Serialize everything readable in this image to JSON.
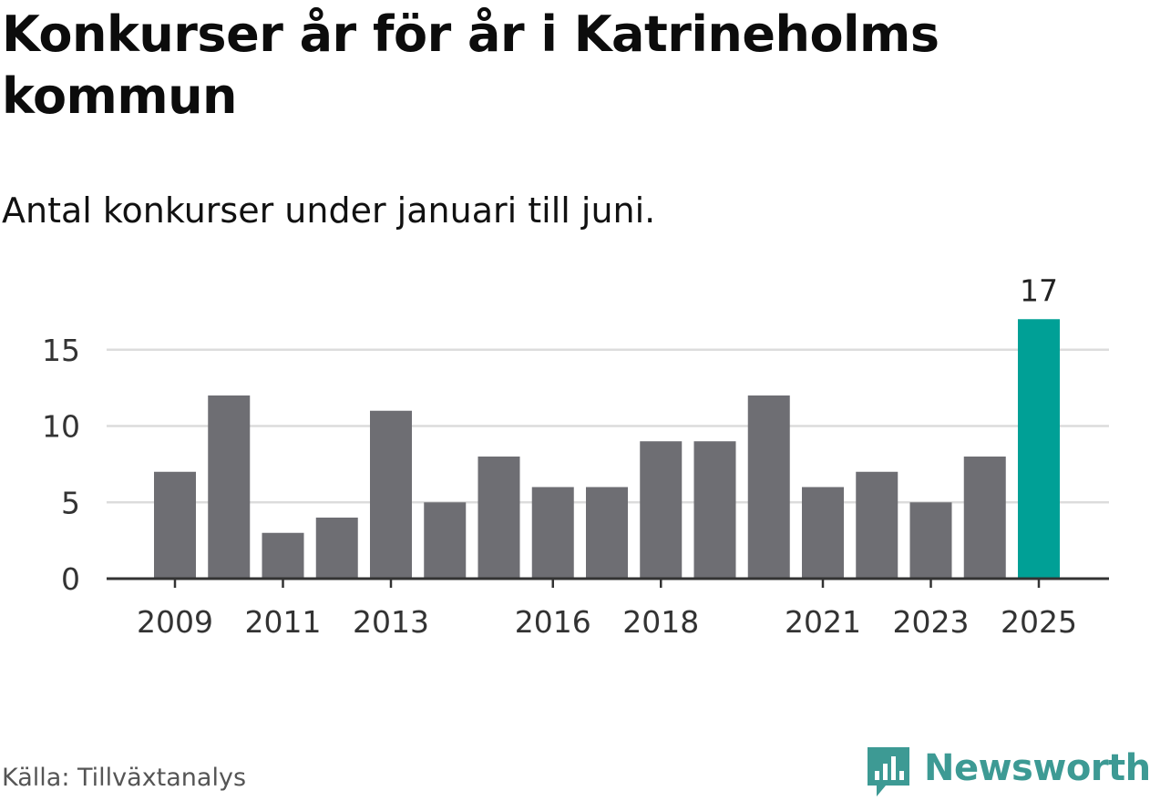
{
  "header": {
    "title": "Konkurser år för år i Katrineholms kommun",
    "subtitle": "Antal konkurser under januari till juni."
  },
  "footer": {
    "source": "Källa: Tillväxtanalys",
    "brand": "Newsworthy",
    "brand_icon": "bar-chart-speech-bubble-icon"
  },
  "colors": {
    "bar": "#6e6e73",
    "highlight": "#00a096",
    "grid": "#dcdcdc",
    "axis": "#333333",
    "brand": "#3d9a94"
  },
  "chart_data": {
    "type": "bar",
    "categories": [
      "2009",
      "2010",
      "2011",
      "2012",
      "2013",
      "2014",
      "2015",
      "2016",
      "2017",
      "2018",
      "2019",
      "2020",
      "2021",
      "2022",
      "2023",
      "2024",
      "2025"
    ],
    "values": [
      7,
      12,
      3,
      4,
      11,
      5,
      8,
      6,
      6,
      9,
      9,
      12,
      6,
      7,
      5,
      8,
      17
    ],
    "x_tick_labels": [
      "2009",
      "2011",
      "2013",
      "2016",
      "2018",
      "2021",
      "2023",
      "2025"
    ],
    "y_ticks": [
      0,
      5,
      10,
      15
    ],
    "ylim": [
      0,
      17
    ],
    "grid": true,
    "highlight": {
      "category": "2025",
      "label": "17"
    },
    "title": "Konkurser år för år i Katrineholms kommun",
    "xlabel": "",
    "ylabel": ""
  }
}
